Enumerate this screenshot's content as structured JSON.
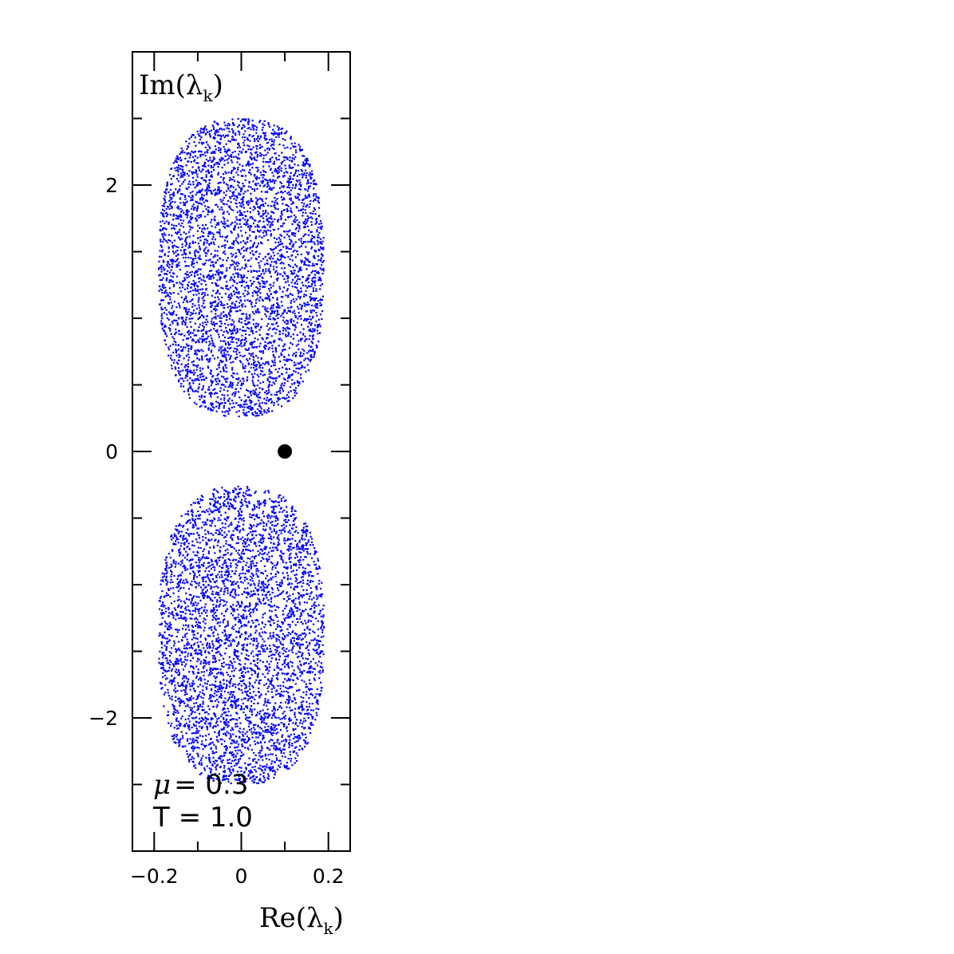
{
  "chart_data": {
    "type": "scatter",
    "xlabel": {
      "base": "Re(λ",
      "sub": "k",
      "close": ")"
    },
    "ylabel": {
      "base": "Im(λ",
      "sub": "k",
      "close": ")"
    },
    "xlim": [
      -0.25,
      0.25
    ],
    "ylim": [
      -3.0,
      3.0
    ],
    "x_ticks_major": [
      -0.2,
      0,
      0.2
    ],
    "x_tick_labels": [
      "−0.2",
      "0",
      "0.2"
    ],
    "y_ticks_major": [
      -2,
      0,
      2
    ],
    "y_tick_labels": [
      "−2",
      "0",
      "2"
    ],
    "x_ticks_minor": [
      -0.1,
      0.1
    ],
    "y_ticks_minor": [
      -2.5,
      -1.5,
      -1.0,
      -0.5,
      0.5,
      1.0,
      1.5,
      2.5
    ],
    "grid": false,
    "series": [
      {
        "marker": "dot",
        "color": "#0000ff",
        "clusters": [
          {
            "center_x": 0.0,
            "center_y": 1.38,
            "half_width": 0.19,
            "half_height": 1.12,
            "count": 4200
          },
          {
            "center_x": 0.0,
            "center_y": -1.38,
            "half_width": 0.19,
            "half_height": 1.12,
            "count": 4200
          }
        ]
      },
      {
        "marker": "filled-circle",
        "color": "#000000",
        "points": [
          {
            "x": 0.1,
            "y": 0.0
          }
        ]
      }
    ],
    "annotations": {
      "mu_symbol": "μ",
      "mu_text": "= 0.3",
      "t_text": "T = 1.0"
    }
  }
}
